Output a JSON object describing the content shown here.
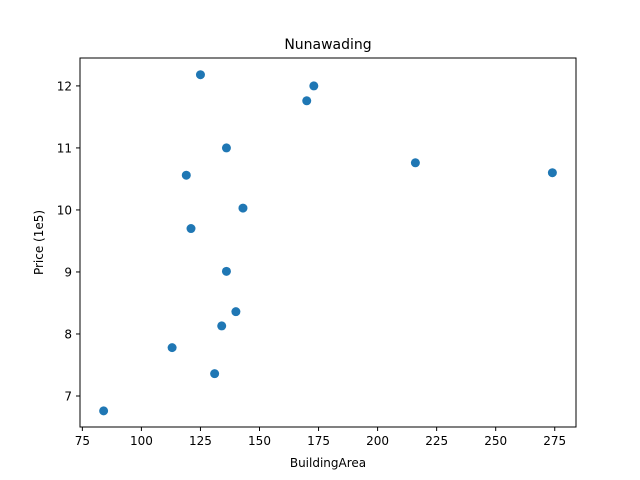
{
  "chart_data": {
    "type": "scatter",
    "title": "Nunawading",
    "xlabel": "BuildingArea",
    "ylabel": "Price (1e5)",
    "xlim": [
      74,
      284
    ],
    "ylim": [
      6.5,
      12.45
    ],
    "xticks": [
      75,
      100,
      125,
      150,
      175,
      200,
      225,
      250,
      275
    ],
    "yticks": [
      7,
      8,
      9,
      10,
      11,
      12
    ],
    "grid": false,
    "marker_color": "#1f77b4",
    "series": [
      {
        "points": [
          {
            "x": 84,
            "y": 6.76
          },
          {
            "x": 113,
            "y": 7.78
          },
          {
            "x": 119,
            "y": 10.56
          },
          {
            "x": 121,
            "y": 9.7
          },
          {
            "x": 125,
            "y": 12.18
          },
          {
            "x": 131,
            "y": 7.36
          },
          {
            "x": 134,
            "y": 8.13
          },
          {
            "x": 136,
            "y": 11.0
          },
          {
            "x": 136,
            "y": 9.01
          },
          {
            "x": 140,
            "y": 8.36
          },
          {
            "x": 143,
            "y": 10.03
          },
          {
            "x": 170,
            "y": 11.76
          },
          {
            "x": 173,
            "y": 12.0
          },
          {
            "x": 216,
            "y": 10.76
          },
          {
            "x": 274,
            "y": 10.6
          }
        ]
      }
    ]
  }
}
